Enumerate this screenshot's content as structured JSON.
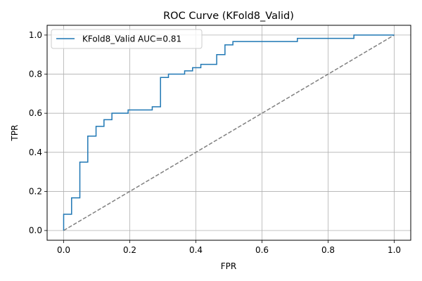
{
  "chart_data": {
    "type": "line",
    "title": "ROC Curve (KFold8_Valid)",
    "xlabel": "FPR",
    "ylabel": "TPR",
    "xlim": [
      -0.05,
      1.05
    ],
    "ylim": [
      -0.05,
      1.05
    ],
    "xticks": [
      0.0,
      0.2,
      0.4,
      0.6,
      0.8,
      1.0
    ],
    "yticks": [
      0.0,
      0.2,
      0.4,
      0.6,
      0.8,
      1.0
    ],
    "xtick_labels": [
      "0.0",
      "0.2",
      "0.4",
      "0.6",
      "0.8",
      "1.0"
    ],
    "ytick_labels": [
      "0.0",
      "0.2",
      "0.4",
      "0.6",
      "0.8",
      "1.0"
    ],
    "grid": true,
    "legend_position": "top-left",
    "series": [
      {
        "name": "KFold8_Valid AUC=0.81",
        "color": "#1f77b4",
        "style": "solid",
        "drawstyle": "step",
        "x": [
          0.0,
          0.0,
          0.024,
          0.024,
          0.049,
          0.049,
          0.073,
          0.073,
          0.098,
          0.098,
          0.122,
          0.122,
          0.146,
          0.146,
          0.195,
          0.195,
          0.268,
          0.268,
          0.293,
          0.293,
          0.317,
          0.317,
          0.366,
          0.366,
          0.39,
          0.39,
          0.415,
          0.415,
          0.463,
          0.463,
          0.488,
          0.488,
          0.512,
          0.512,
          0.707,
          0.707,
          0.878,
          0.878,
          1.0
        ],
        "y": [
          0.0,
          0.083,
          0.083,
          0.167,
          0.167,
          0.35,
          0.35,
          0.483,
          0.483,
          0.533,
          0.533,
          0.567,
          0.567,
          0.6,
          0.6,
          0.617,
          0.617,
          0.633,
          0.633,
          0.783,
          0.783,
          0.8,
          0.8,
          0.817,
          0.817,
          0.833,
          0.833,
          0.85,
          0.85,
          0.9,
          0.9,
          0.95,
          0.95,
          0.967,
          0.967,
          0.983,
          0.983,
          1.0,
          1.0
        ]
      },
      {
        "name": "",
        "color": "#808080",
        "style": "dashed",
        "x": [
          0.0,
          1.0
        ],
        "y": [
          0.0,
          1.0
        ]
      }
    ]
  }
}
